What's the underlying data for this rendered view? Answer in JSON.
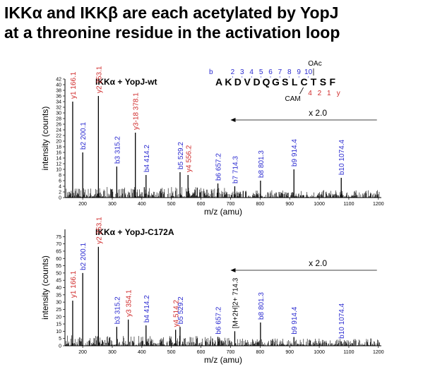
{
  "header": {
    "line1": "IKKα and IKKβ are each acetylated by YopJ",
    "line2": "at a threonine residue in the activation loop"
  },
  "peptide": {
    "sequence": [
      "A",
      "K",
      "D",
      "V",
      "D",
      "Q",
      "G",
      "S",
      "L",
      "C",
      "T",
      "S",
      "F"
    ],
    "b_label": "b",
    "b_numbers": [
      "2",
      "3",
      "4",
      "5",
      "6",
      "7",
      "8",
      "9",
      "10"
    ],
    "y_numbers": [
      "4",
      "2",
      "1"
    ],
    "y_label": "y",
    "mod_oac": "OAc",
    "mod_cam": "CAM",
    "colors": {
      "b": "#2b2bd0",
      "y": "#d02b2b"
    }
  },
  "chart_data": [
    {
      "type": "bar",
      "title": "IKKα + YopJ-wt",
      "xlabel": "m/z (amu)",
      "ylabel": "intensity (counts)",
      "xlim": [
        140,
        1210
      ],
      "ylim": [
        0,
        42
      ],
      "xticks": [
        "200",
        "300",
        "400",
        "500",
        "600",
        "700",
        "800",
        "900",
        "1000",
        "1100",
        "1200"
      ],
      "yticks": [
        "0",
        "2",
        "4",
        "6",
        "8",
        "10",
        "12",
        "14",
        "16",
        "18",
        "20",
        "22",
        "24",
        "26",
        "28",
        "30",
        "32",
        "34",
        "36",
        "38",
        "40",
        "42"
      ],
      "scale_note": "x 2.0",
      "scale_from": 700,
      "peaks": [
        {
          "mz": 166.1,
          "value": 34,
          "label": "y1  166.1",
          "ion": "y"
        },
        {
          "mz": 200.1,
          "value": 16,
          "label": "b2  200.1",
          "ion": "b"
        },
        {
          "mz": 253.1,
          "value": 36,
          "label": "y2  253.1",
          "ion": "y"
        },
        {
          "mz": 315.2,
          "value": 11,
          "label": "b3  315.2",
          "ion": "b"
        },
        {
          "mz": 378.1,
          "value": 23,
          "label": "y3-18  378.1",
          "ion": "y"
        },
        {
          "mz": 414.2,
          "value": 8,
          "label": "b4  414.2",
          "ion": "b"
        },
        {
          "mz": 529.2,
          "value": 9,
          "label": "b5  529.2",
          "ion": "b"
        },
        {
          "mz": 556.2,
          "value": 8,
          "label": "y4  556.2",
          "ion": "y"
        },
        {
          "mz": 657.2,
          "value": 5,
          "label": "b6  657.2",
          "ion": "b"
        },
        {
          "mz": 714.3,
          "value": 4,
          "label": "b7  714.3",
          "ion": "b"
        },
        {
          "mz": 801.3,
          "value": 6,
          "label": "b8  801.3",
          "ion": "b"
        },
        {
          "mz": 914.4,
          "value": 10,
          "label": "b9  914.4",
          "ion": "b"
        },
        {
          "mz": 1074.4,
          "value": 7,
          "label": "b10  1074.4",
          "ion": "b"
        }
      ]
    },
    {
      "type": "bar",
      "title": "IKKα + YopJ-C172A",
      "xlabel": "m/z (amu)",
      "ylabel": "intensity (counts)",
      "xlim": [
        140,
        1210
      ],
      "ylim": [
        0,
        80
      ],
      "xticks": [
        "200",
        "300",
        "400",
        "500",
        "600",
        "700",
        "800",
        "900",
        "1000",
        "1100",
        "1200"
      ],
      "yticks": [
        "0",
        "5",
        "10",
        "15",
        "20",
        "25",
        "30",
        "35",
        "40",
        "45",
        "50",
        "55",
        "60",
        "65",
        "70",
        "75"
      ],
      "scale_note": "x 2.0",
      "scale_from": 700,
      "peaks": [
        {
          "mz": 166.1,
          "value": 31,
          "label": "y1  166.1",
          "ion": "y"
        },
        {
          "mz": 200.1,
          "value": 50,
          "label": "b2  200.1",
          "ion": "b"
        },
        {
          "mz": 253.1,
          "value": 68,
          "label": "y2  253.1",
          "ion": "y"
        },
        {
          "mz": 315.2,
          "value": 13,
          "label": "b3  315.2",
          "ion": "b"
        },
        {
          "mz": 354.1,
          "value": 18,
          "label": "y3  354.1",
          "ion": "y"
        },
        {
          "mz": 414.2,
          "value": 14,
          "label": "b4  414.2",
          "ion": "b"
        },
        {
          "mz": 514.2,
          "value": 11,
          "label": "y4  514.2",
          "ion": "y"
        },
        {
          "mz": 529.2,
          "value": 13,
          "label": "b5  529.2",
          "ion": "b"
        },
        {
          "mz": 657.2,
          "value": 6,
          "label": "b6  657.2",
          "ion": "b"
        },
        {
          "mz": 714.3,
          "value": 10,
          "label": "[M+2H]2+  714.3",
          "ion": "m"
        },
        {
          "mz": 801.3,
          "value": 16,
          "label": "b8  801.3",
          "ion": "b"
        },
        {
          "mz": 914.4,
          "value": 6,
          "label": "b9  914.4",
          "ion": "b"
        },
        {
          "mz": 1074.4,
          "value": 3,
          "label": "b10  1074.4",
          "ion": "b"
        }
      ]
    }
  ]
}
